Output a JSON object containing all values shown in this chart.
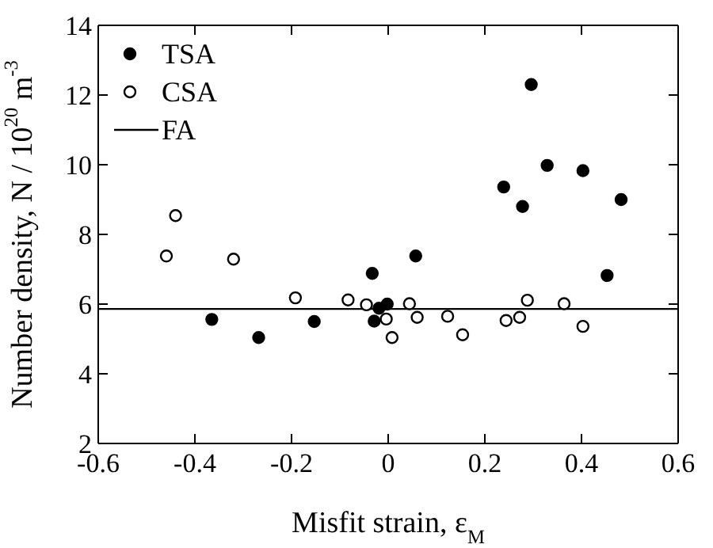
{
  "chart_data": {
    "type": "scatter",
    "xlabel": "Misfit strain, ε$_{M}$",
    "ylabel": "Number density, N / 10$^{20}$ m$^{-3}$",
    "xlim": [
      -0.6,
      0.6
    ],
    "xticks": [
      -0.6,
      -0.4,
      -0.2,
      0,
      0.2,
      0.4,
      0.6
    ],
    "ylim": [
      2,
      14
    ],
    "yticks": [
      2,
      4,
      6,
      8,
      10,
      12,
      14
    ],
    "legend": "top left",
    "marker": "circle",
    "series": [
      {
        "name": "TSA",
        "color": "#000000",
        "x": [
          -0.365,
          -0.268,
          -0.153,
          -0.033,
          -0.029,
          -0.019,
          -0.002,
          0.057,
          0.239,
          0.296,
          0.278,
          0.329,
          0.403,
          0.453,
          0.482
        ],
        "values": [
          5.56,
          5.04,
          5.5,
          6.88,
          5.51,
          5.88,
          6.0,
          7.38,
          9.36,
          12.3,
          8.8,
          9.98,
          9.83,
          6.82,
          9.0
        ]
      },
      {
        "name": "CSA",
        "color": "#ffffff",
        "x": [
          -0.459,
          -0.44,
          -0.32,
          -0.192,
          -0.083,
          -0.045,
          -0.004,
          0.008,
          0.044,
          0.06,
          0.123,
          0.154,
          0.244,
          0.272,
          0.288,
          0.364,
          0.403
        ],
        "values": [
          7.38,
          8.54,
          7.29,
          6.18,
          6.12,
          5.98,
          5.57,
          5.04,
          6.01,
          5.62,
          5.65,
          5.12,
          5.53,
          5.62,
          6.11,
          6.01,
          5.36
        ]
      },
      {
        "name": "FA",
        "type": "line",
        "color": "#000000",
        "marker": "none",
        "x": [
          -0.6,
          0.6
        ],
        "values": [
          5.86,
          5.86
        ]
      }
    ]
  }
}
